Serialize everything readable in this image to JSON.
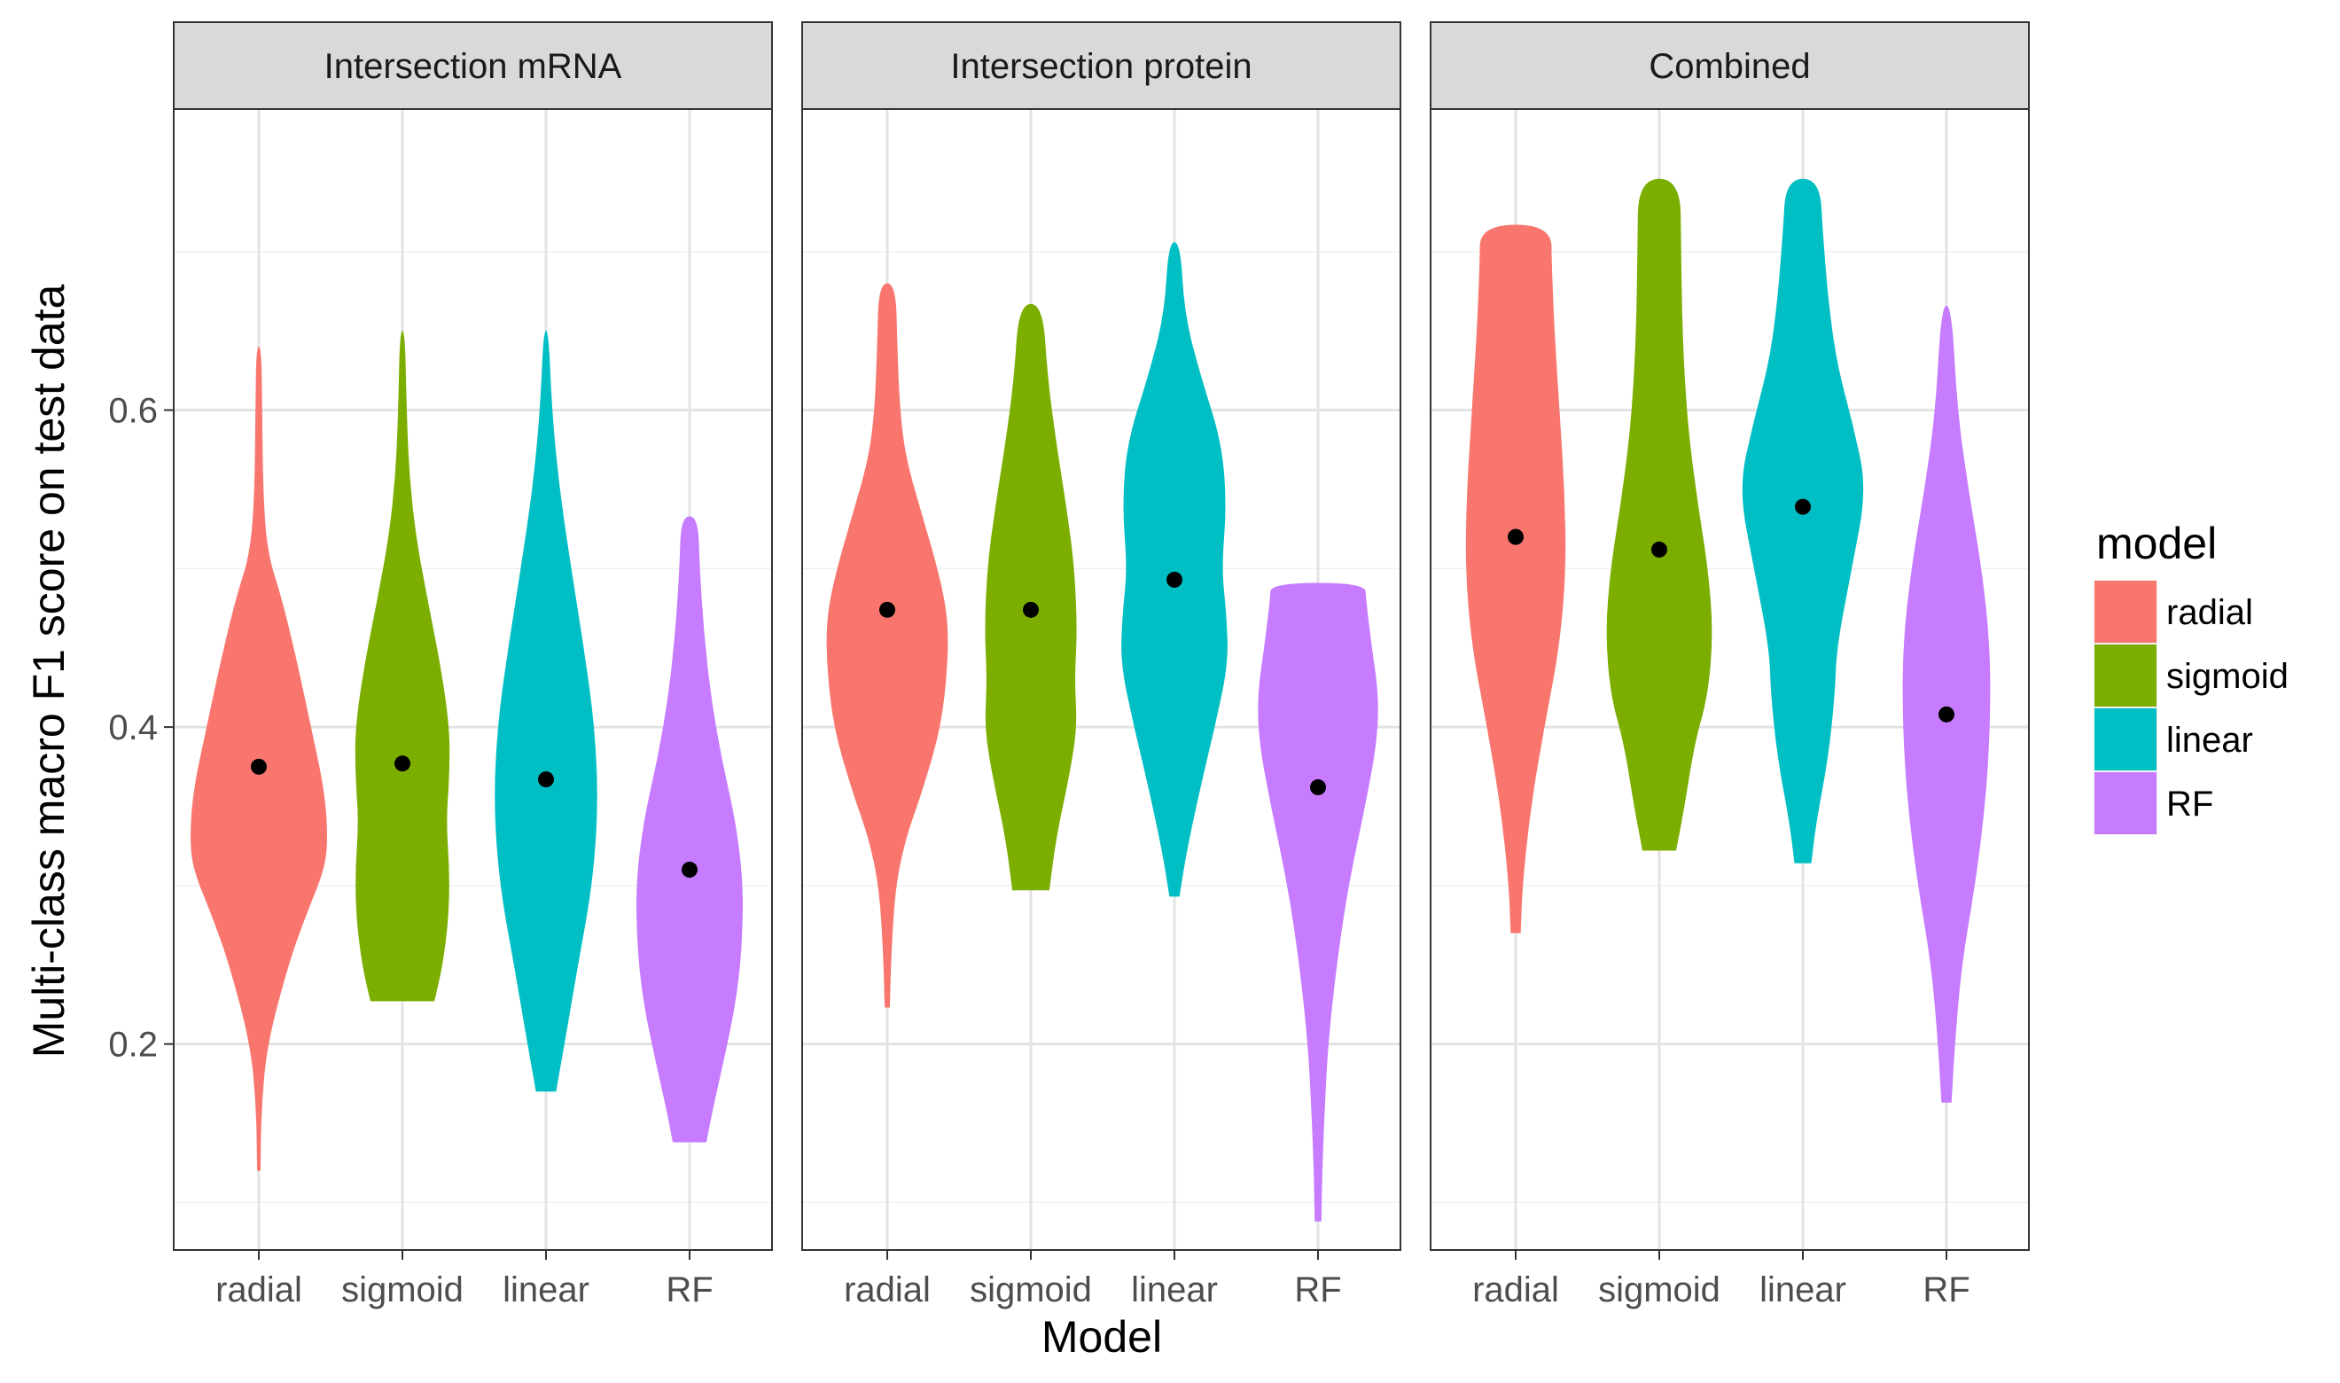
{
  "chart_data": {
    "type": "violin",
    "xlabel": "Model",
    "ylabel": "Multi-class macro F1 score on test data",
    "ylim": [
      0.07,
      0.79
    ],
    "y_ticks": [
      0.2,
      0.4,
      0.6
    ],
    "y_tick_labels": [
      "0.2",
      "0.4",
      "0.6"
    ],
    "categories": [
      "radial",
      "sigmoid",
      "linear",
      "RF"
    ],
    "legend": {
      "title": "model",
      "placement": "right",
      "items": [
        {
          "label": "radial",
          "color": "#F8766D"
        },
        {
          "label": "sigmoid",
          "color": "#7CAE00"
        },
        {
          "label": "linear",
          "color": "#00BFC4"
        },
        {
          "label": "RF",
          "color": "#C77CFF"
        }
      ]
    },
    "panels": [
      {
        "title": "Intersection mRNA",
        "violins": [
          {
            "category": "radial",
            "min": 0.12,
            "max": 0.64,
            "mean": 0.375,
            "profile": [
              [
                0.12,
                0.02
              ],
              [
                0.16,
                0.03
              ],
              [
                0.2,
                0.1
              ],
              [
                0.25,
                0.35
              ],
              [
                0.28,
                0.55
              ],
              [
                0.31,
                0.78
              ],
              [
                0.33,
                0.82
              ],
              [
                0.36,
                0.78
              ],
              [
                0.4,
                0.62
              ],
              [
                0.44,
                0.46
              ],
              [
                0.48,
                0.28
              ],
              [
                0.51,
                0.1
              ],
              [
                0.55,
                0.05
              ],
              [
                0.6,
                0.04
              ],
              [
                0.64,
                0.03
              ]
            ]
          },
          {
            "category": "sigmoid",
            "min": 0.227,
            "max": 0.65,
            "mean": 0.377,
            "profile": [
              [
                0.227,
                0.38
              ],
              [
                0.25,
                0.48
              ],
              [
                0.28,
                0.55
              ],
              [
                0.31,
                0.56
              ],
              [
                0.34,
                0.52
              ],
              [
                0.37,
                0.56
              ],
              [
                0.4,
                0.56
              ],
              [
                0.44,
                0.45
              ],
              [
                0.48,
                0.3
              ],
              [
                0.52,
                0.16
              ],
              [
                0.56,
                0.08
              ],
              [
                0.6,
                0.05
              ],
              [
                0.65,
                0.03
              ]
            ]
          },
          {
            "category": "linear",
            "min": 0.17,
            "max": 0.65,
            "mean": 0.367,
            "profile": [
              [
                0.17,
                0.12
              ],
              [
                0.2,
                0.22
              ],
              [
                0.25,
                0.38
              ],
              [
                0.3,
                0.55
              ],
              [
                0.35,
                0.62
              ],
              [
                0.4,
                0.58
              ],
              [
                0.45,
                0.45
              ],
              [
                0.5,
                0.3
              ],
              [
                0.55,
                0.16
              ],
              [
                0.6,
                0.07
              ],
              [
                0.65,
                0.03
              ]
            ]
          },
          {
            "category": "RF",
            "min": 0.138,
            "max": 0.533,
            "mean": 0.31,
            "profile": [
              [
                0.138,
                0.2
              ],
              [
                0.16,
                0.28
              ],
              [
                0.2,
                0.45
              ],
              [
                0.23,
                0.56
              ],
              [
                0.26,
                0.62
              ],
              [
                0.3,
                0.64
              ],
              [
                0.34,
                0.55
              ],
              [
                0.38,
                0.38
              ],
              [
                0.42,
                0.25
              ],
              [
                0.46,
                0.17
              ],
              [
                0.5,
                0.12
              ],
              [
                0.533,
                0.1
              ]
            ]
          }
        ]
      },
      {
        "title": "Intersection protein",
        "violins": [
          {
            "category": "radial",
            "min": 0.223,
            "max": 0.68,
            "mean": 0.474,
            "profile": [
              [
                0.223,
                0.03
              ],
              [
                0.26,
                0.05
              ],
              [
                0.3,
                0.1
              ],
              [
                0.33,
                0.22
              ],
              [
                0.36,
                0.42
              ],
              [
                0.4,
                0.64
              ],
              [
                0.44,
                0.72
              ],
              [
                0.47,
                0.72
              ],
              [
                0.5,
                0.6
              ],
              [
                0.54,
                0.38
              ],
              [
                0.57,
                0.22
              ],
              [
                0.6,
                0.15
              ],
              [
                0.64,
                0.12
              ],
              [
                0.68,
                0.1
              ]
            ]
          },
          {
            "category": "sigmoid",
            "min": 0.297,
            "max": 0.667,
            "mean": 0.474,
            "profile": [
              [
                0.297,
                0.22
              ],
              [
                0.33,
                0.3
              ],
              [
                0.37,
                0.46
              ],
              [
                0.4,
                0.55
              ],
              [
                0.43,
                0.52
              ],
              [
                0.46,
                0.55
              ],
              [
                0.5,
                0.52
              ],
              [
                0.54,
                0.42
              ],
              [
                0.58,
                0.3
              ],
              [
                0.62,
                0.2
              ],
              [
                0.667,
                0.14
              ]
            ]
          },
          {
            "category": "linear",
            "min": 0.293,
            "max": 0.706,
            "mean": 0.493,
            "profile": [
              [
                0.293,
                0.06
              ],
              [
                0.32,
                0.14
              ],
              [
                0.36,
                0.3
              ],
              [
                0.4,
                0.48
              ],
              [
                0.44,
                0.64
              ],
              [
                0.47,
                0.62
              ],
              [
                0.5,
                0.56
              ],
              [
                0.54,
                0.62
              ],
              [
                0.58,
                0.56
              ],
              [
                0.62,
                0.32
              ],
              [
                0.66,
                0.12
              ],
              [
                0.706,
                0.07
              ]
            ]
          },
          {
            "category": "RF",
            "min": 0.088,
            "max": 0.491,
            "mean": 0.362,
            "profile": [
              [
                0.088,
                0.04
              ],
              [
                0.12,
                0.05
              ],
              [
                0.16,
                0.08
              ],
              [
                0.2,
                0.12
              ],
              [
                0.25,
                0.22
              ],
              [
                0.3,
                0.36
              ],
              [
                0.35,
                0.56
              ],
              [
                0.39,
                0.7
              ],
              [
                0.42,
                0.72
              ],
              [
                0.45,
                0.64
              ],
              [
                0.48,
                0.57
              ],
              [
                0.491,
                0.56
              ]
            ]
          }
        ]
      },
      {
        "title": "Combined",
        "violins": [
          {
            "category": "radial",
            "min": 0.27,
            "max": 0.717,
            "mean": 0.52,
            "profile": [
              [
                0.27,
                0.06
              ],
              [
                0.3,
                0.08
              ],
              [
                0.35,
                0.18
              ],
              [
                0.4,
                0.34
              ],
              [
                0.45,
                0.52
              ],
              [
                0.5,
                0.6
              ],
              [
                0.55,
                0.58
              ],
              [
                0.6,
                0.52
              ],
              [
                0.65,
                0.46
              ],
              [
                0.69,
                0.43
              ],
              [
                0.717,
                0.42
              ]
            ]
          },
          {
            "category": "sigmoid",
            "min": 0.322,
            "max": 0.746,
            "mean": 0.512,
            "profile": [
              [
                0.322,
                0.2
              ],
              [
                0.35,
                0.3
              ],
              [
                0.39,
                0.42
              ],
              [
                0.42,
                0.58
              ],
              [
                0.46,
                0.64
              ],
              [
                0.5,
                0.58
              ],
              [
                0.54,
                0.46
              ],
              [
                0.58,
                0.36
              ],
              [
                0.62,
                0.3
              ],
              [
                0.66,
                0.27
              ],
              [
                0.7,
                0.26
              ],
              [
                0.746,
                0.25
              ]
            ]
          },
          {
            "category": "linear",
            "min": 0.314,
            "max": 0.746,
            "mean": 0.539,
            "profile": [
              [
                0.314,
                0.1
              ],
              [
                0.34,
                0.16
              ],
              [
                0.38,
                0.3
              ],
              [
                0.42,
                0.38
              ],
              [
                0.45,
                0.4
              ],
              [
                0.5,
                0.58
              ],
              [
                0.55,
                0.76
              ],
              [
                0.59,
                0.6
              ],
              [
                0.63,
                0.4
              ],
              [
                0.67,
                0.3
              ],
              [
                0.71,
                0.24
              ],
              [
                0.746,
                0.2
              ]
            ]
          },
          {
            "category": "RF",
            "min": 0.163,
            "max": 0.666,
            "mean": 0.408,
            "profile": [
              [
                0.163,
                0.06
              ],
              [
                0.2,
                0.1
              ],
              [
                0.25,
                0.18
              ],
              [
                0.3,
                0.34
              ],
              [
                0.35,
                0.46
              ],
              [
                0.4,
                0.52
              ],
              [
                0.45,
                0.52
              ],
              [
                0.5,
                0.42
              ],
              [
                0.55,
                0.26
              ],
              [
                0.6,
                0.13
              ],
              [
                0.666,
                0.06
              ]
            ]
          }
        ]
      }
    ]
  }
}
